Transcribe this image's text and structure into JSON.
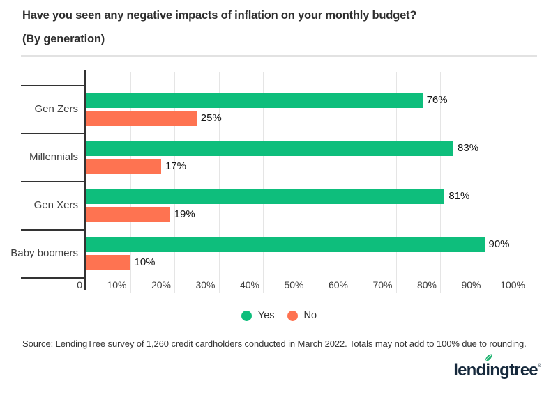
{
  "title": "Have you seen any negative impacts of inflation on your monthly budget?",
  "subtitle": "(By generation)",
  "chart_data": {
    "type": "bar",
    "orientation": "horizontal",
    "title": "Have you seen any negative impacts of inflation on your monthly budget? (By generation)",
    "categories": [
      "Gen Zers",
      "Millennials",
      "Gen Xers",
      "Baby boomers"
    ],
    "series": [
      {
        "name": "Yes",
        "color": "#0ebe7c",
        "values": [
          76,
          83,
          81,
          90
        ]
      },
      {
        "name": "No",
        "color": "#fe7351",
        "values": [
          25,
          17,
          19,
          10
        ]
      }
    ],
    "value_suffix": "%",
    "x_axis": {
      "min": 0,
      "max": 100,
      "ticks": [
        "0",
        "10%",
        "20%",
        "30%",
        "40%",
        "50%",
        "60%",
        "70%",
        "80%",
        "90%",
        "100%"
      ]
    },
    "grid": true,
    "legend_position": "bottom",
    "legend": [
      {
        "label": "Yes",
        "color": "#0ebe7c"
      },
      {
        "label": "No",
        "color": "#fe7351"
      }
    ],
    "colors": {
      "axis": "#333333",
      "gridline": "#e5e5e5",
      "label_text": "#3d3d3d",
      "value_text": "#141414"
    }
  },
  "source": "Source: LendingTree survey of 1,260 credit cardholders conducted in March 2022. Totals may not add to 100% due to rounding.",
  "logo": {
    "text_before_leaf": "lend",
    "leaf_letter": "i",
    "text_after_leaf": "ngtree",
    "registered": "®",
    "color": "#16293c",
    "leaf_color": "#24b574"
  }
}
